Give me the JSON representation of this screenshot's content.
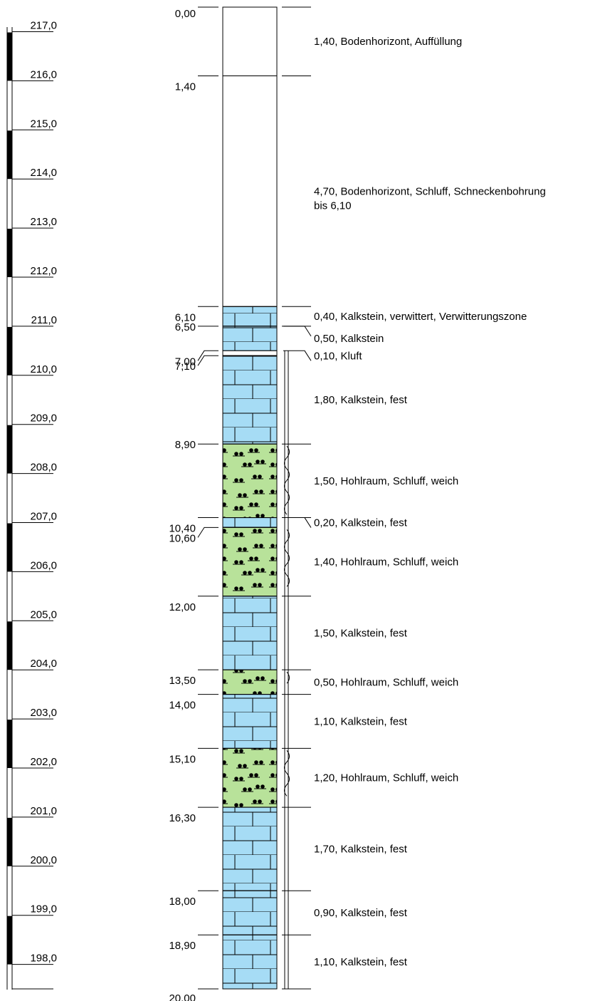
{
  "elevation_scale": {
    "labels": [
      "217,0",
      "216,0",
      "215,0",
      "214,0",
      "213,0",
      "212,0",
      "211,0",
      "210,0",
      "209,0",
      "208,0",
      "207,0",
      "206,0",
      "205,0",
      "204,0",
      "203,0",
      "202,0",
      "201,0",
      "200,0",
      "199,0",
      "198,0"
    ]
  },
  "layers": [
    {
      "top": 0.0,
      "bottom": 1.4,
      "top_label": "0,00",
      "description": "1,40, Bodenhorizont, Auffüllung",
      "pattern": "none"
    },
    {
      "top": 1.4,
      "bottom": 6.1,
      "top_label": "1,40",
      "description": "4,70, Bodenhorizont, Schluff, Schneckenbohrung",
      "description2": "bis 6,10",
      "pattern": "none"
    },
    {
      "top": 6.1,
      "bottom": 6.5,
      "top_label": "6,10",
      "description": "0,40, Kalkstein, verwittert, Verwitterungszone",
      "pattern": "limestone"
    },
    {
      "top": 6.5,
      "bottom": 7.0,
      "top_label": "6,50",
      "description": "0,50, Kalkstein",
      "pattern": "limestone"
    },
    {
      "top": 7.0,
      "bottom": 7.1,
      "top_label": "7,00",
      "description": "0,10, Kluft",
      "pattern": "joint"
    },
    {
      "top": 7.1,
      "bottom": 8.9,
      "top_label": "7,10",
      "description": "1,80, Kalkstein, fest",
      "pattern": "limestone"
    },
    {
      "top": 8.9,
      "bottom": 10.4,
      "top_label": "8,90",
      "description": "1,50, Hohlraum, Schluff, weich",
      "pattern": "silt"
    },
    {
      "top": 10.4,
      "bottom": 10.6,
      "top_label": "10,40",
      "description": "0,20, Kalkstein, fest",
      "pattern": "limestone"
    },
    {
      "top": 10.6,
      "bottom": 12.0,
      "top_label": "10,60",
      "description": "1,40, Hohlraum, Schluff, weich",
      "pattern": "silt"
    },
    {
      "top": 12.0,
      "bottom": 13.5,
      "top_label": "12,00",
      "description": "1,50, Kalkstein, fest",
      "pattern": "limestone"
    },
    {
      "top": 13.5,
      "bottom": 14.0,
      "top_label": "13,50",
      "description": "0,50, Hohlraum, Schluff, weich",
      "pattern": "silt"
    },
    {
      "top": 14.0,
      "bottom": 15.1,
      "top_label": "14,00",
      "description": "1,10, Kalkstein, fest",
      "pattern": "limestone"
    },
    {
      "top": 15.1,
      "bottom": 16.3,
      "top_label": "15,10",
      "description": "1,20, Hohlraum, Schluff, weich",
      "pattern": "silt"
    },
    {
      "top": 16.3,
      "bottom": 18.0,
      "top_label": "16,30",
      "description": "1,70, Kalkstein, fest",
      "pattern": "limestone"
    },
    {
      "top": 18.0,
      "bottom": 18.9,
      "top_label": "18,00",
      "description": "0,90, Kalkstein, fest",
      "pattern": "limestone"
    },
    {
      "top": 18.9,
      "bottom": 20.0,
      "top_label": "18,90",
      "description": "1,10, Kalkstein, fest",
      "pattern": "limestone"
    }
  ],
  "final_depth_label": "20,00",
  "colors": {
    "limestone": "#a6dcf5",
    "silt": "#b8e29a",
    "line": "#000000"
  }
}
